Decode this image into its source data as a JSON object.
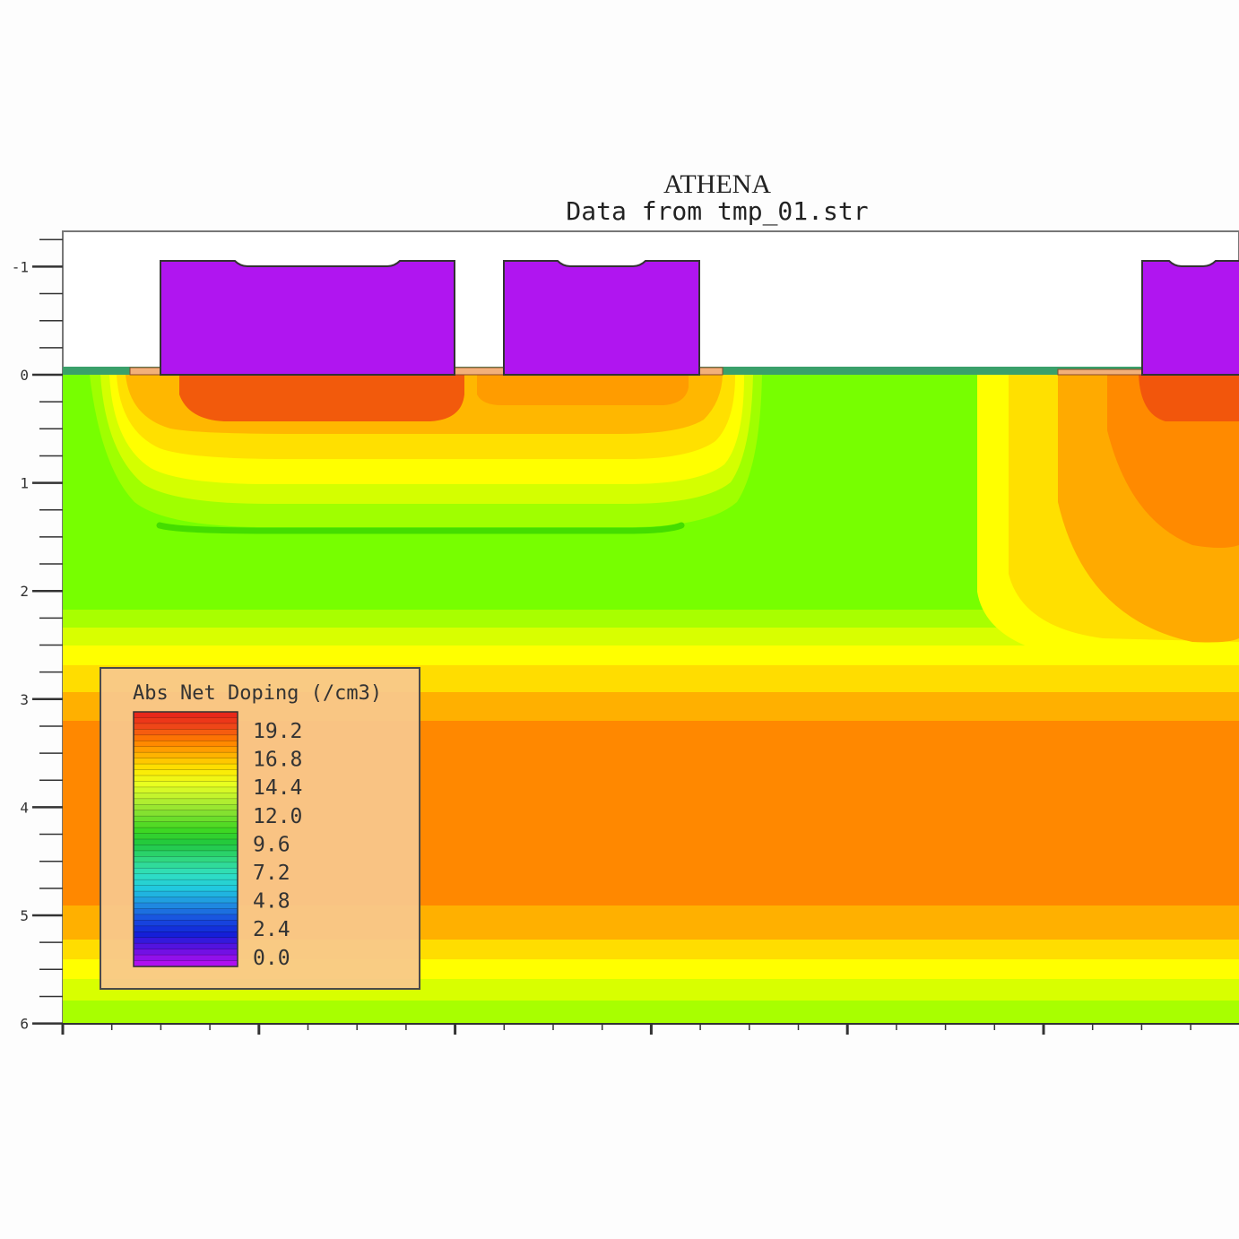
{
  "chart_data": {
    "type": "heatmap",
    "title": "ATHENA",
    "subtitle": "Data from tmp_01.str",
    "xlabel": "",
    "ylabel": "",
    "ylim": [
      -1.3,
      6
    ],
    "y_ticks": [
      -1,
      0,
      1,
      2,
      3,
      4,
      5,
      6
    ],
    "y_tick_labels": [
      "-1",
      "0",
      "1",
      "2",
      "3",
      "4",
      "5",
      "6"
    ],
    "legend": {
      "title": "Abs Net Doping (/cm3)",
      "placement": "bottom-left",
      "tick_labels": [
        "19.2",
        "16.8",
        "14.4",
        "12.0",
        "9.6",
        "7.2",
        "4.8",
        "2.4",
        "0.0"
      ],
      "range": [
        0.0,
        19.2
      ]
    },
    "layers": [
      {
        "name": "depth band",
        "y_range": [
          3.2,
          4.9
        ],
        "value": 18.5
      },
      {
        "name": "depth band",
        "y_range": [
          2.65,
          3.2
        ],
        "value": 17.5
      },
      {
        "name": "depth band",
        "y_range": [
          4.9,
          5.4
        ],
        "value": 17.5
      },
      {
        "name": "surface implant",
        "y_range": [
          0.0,
          0.4
        ],
        "value": 19.2
      }
    ],
    "grid": false
  },
  "colors": {
    "gate": "#b015f0",
    "background": "#fdfdfd",
    "bulk": "#77ff00",
    "orange": "#ff8800",
    "red": "#f0500a"
  }
}
